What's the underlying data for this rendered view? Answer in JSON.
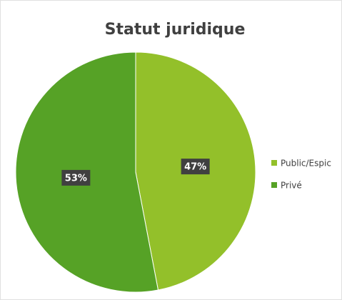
{
  "chart_data": {
    "type": "pie",
    "title": "Statut juridique",
    "categories": [
      "Public/Espic",
      "Privé"
    ],
    "values": [
      47,
      53
    ],
    "value_labels": [
      "47%",
      "53%"
    ],
    "colors": [
      "#93c02a",
      "#56a226"
    ],
    "legend": "right"
  }
}
